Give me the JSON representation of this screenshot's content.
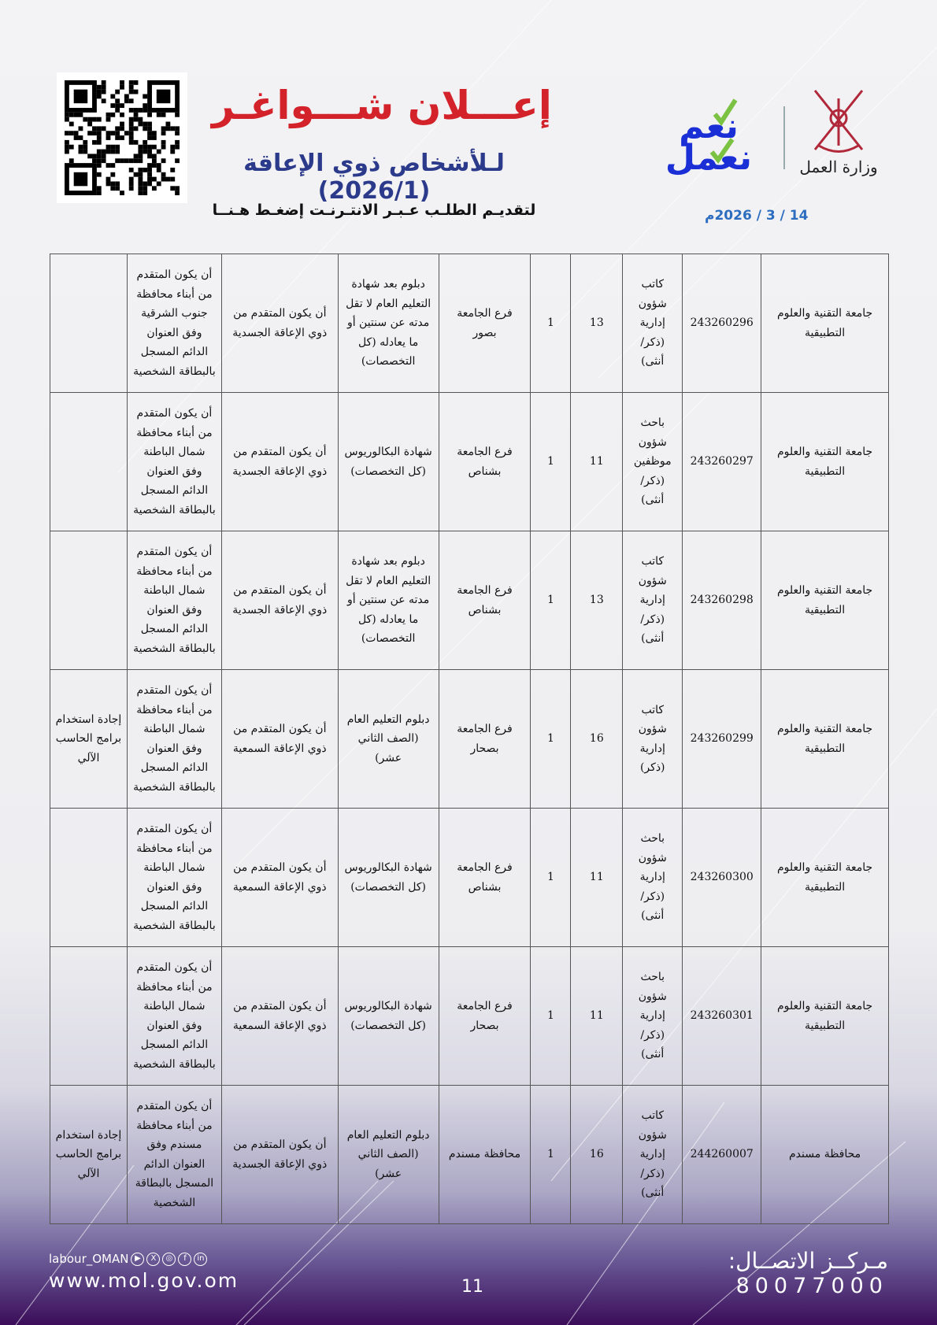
{
  "header": {
    "title": "إعـــلان شـــواغـر",
    "subtitle": "لـلأشخاص ذوي الإعاقة (2026/1)",
    "apply_link": "لتقديـم الطلـب عـبـر الانتـرنـت إضغـط هـنــا",
    "date": "14 / 3 / 2026م",
    "ministry": "وزارة العمل",
    "slogan": "نعم نعمل",
    "brand_colors": {
      "title": "#d4222a",
      "subtitle": "#2b3a8a",
      "date": "#2d6dbf"
    }
  },
  "table": {
    "rows": [
      [
        "جامعة التقنية والعلوم التطبيقية",
        "243260296",
        "كاتب شؤون إدارية (ذكر/ أنثى)",
        "13",
        "1",
        "فرع الجامعة بصور",
        "دبلوم بعد شهادة التعليم العام لا تقل مدته عن سنتين أو ما يعادله (كل التخصصات)",
        "أن يكون المتقدم من ذوي الإعاقة الجسدية",
        "أن يكون المتقدم من أبناء محافظة جنوب الشرقية وفق العنوان الدائم المسجل بالبطاقة الشخصية",
        ""
      ],
      [
        "جامعة التقنية والعلوم التطبيقية",
        "243260297",
        "باحث شؤون موظفين (ذكر/ أنثى)",
        "11",
        "1",
        "فرع الجامعة بشناص",
        "شهادة البكالوريوس (كل التخصصات)",
        "أن يكون المتقدم من ذوي الإعاقة الجسدية",
        "أن يكون المتقدم من أبناء محافظة شمال الباطنة وفق العنوان الدائم المسجل بالبطاقة الشخصية",
        ""
      ],
      [
        "جامعة التقنية والعلوم التطبيقية",
        "243260298",
        "كاتب شؤون إدارية (ذكر/ أنثى)",
        "13",
        "1",
        "فرع الجامعة بشناص",
        "دبلوم بعد شهادة التعليم العام لا تقل مدته عن سنتين أو ما يعادله (كل التخصصات)",
        "أن يكون المتقدم من ذوي الإعاقة الجسدية",
        "أن يكون المتقدم من أبناء محافظة شمال الباطنة وفق العنوان الدائم المسجل بالبطاقة الشخصية",
        ""
      ],
      [
        "جامعة التقنية والعلوم التطبيقية",
        "243260299",
        "كاتب شؤون إدارية (ذكر)",
        "16",
        "1",
        "فرع الجامعة بصحار",
        "دبلوم التعليم العام (الصف الثاني عشر)",
        "أن يكون المتقدم من ذوي الإعاقة السمعية",
        "أن يكون المتقدم من أبناء محافظة شمال الباطنة وفق العنوان الدائم المسجل بالبطاقة الشخصية",
        "إجادة استخدام برامج الحاسب الآلي"
      ],
      [
        "جامعة التقنية والعلوم التطبيقية",
        "243260300",
        "باحث شؤون إدارية (ذكر/ أنثى)",
        "11",
        "1",
        "فرع الجامعة بشناص",
        "شهادة البكالوريوس (كل التخصصات)",
        "أن يكون المتقدم من ذوي الإعاقة السمعية",
        "أن يكون المتقدم من أبناء محافظة شمال الباطنة وفق العنوان الدائم المسجل بالبطاقة الشخصية",
        ""
      ],
      [
        "جامعة التقنية والعلوم التطبيقية",
        "243260301",
        "باحث شؤون إدارية (ذكر/ أنثى)",
        "11",
        "1",
        "فرع الجامعة بصحار",
        "شهادة البكالوريوس (كل التخصصات)",
        "أن يكون المتقدم من ذوي الإعاقة السمعية",
        "أن يكون المتقدم من أبناء محافظة شمال الباطنة وفق العنوان الدائم المسجل بالبطاقة الشخصية",
        ""
      ],
      [
        "محافظة مسندم",
        "244260007",
        "كاتب شؤون إدارية (ذكر/ أنثى)",
        "16",
        "1",
        "محافظة مسندم",
        "دبلوم التعليم العام (الصف الثاني عشر)",
        "أن يكون المتقدم من ذوي الإعاقة الجسدية",
        "أن يكون المتقدم من أبناء محافظة مسندم وفق العنوان الدائم المسجل بالبطاقة الشخصية",
        "إجادة استخدام برامج الحاسب الآلي"
      ]
    ]
  },
  "footer": {
    "social_handle": "labour_OMAN",
    "social_icons": [
      "youtube-icon",
      "x-icon",
      "instagram-icon",
      "facebook-icon",
      "linkedin-icon"
    ],
    "website": "www.mol.gov.om",
    "page_number": "11",
    "contact_label": "مـركــز الاتصــال:",
    "contact_number": "80077000"
  }
}
